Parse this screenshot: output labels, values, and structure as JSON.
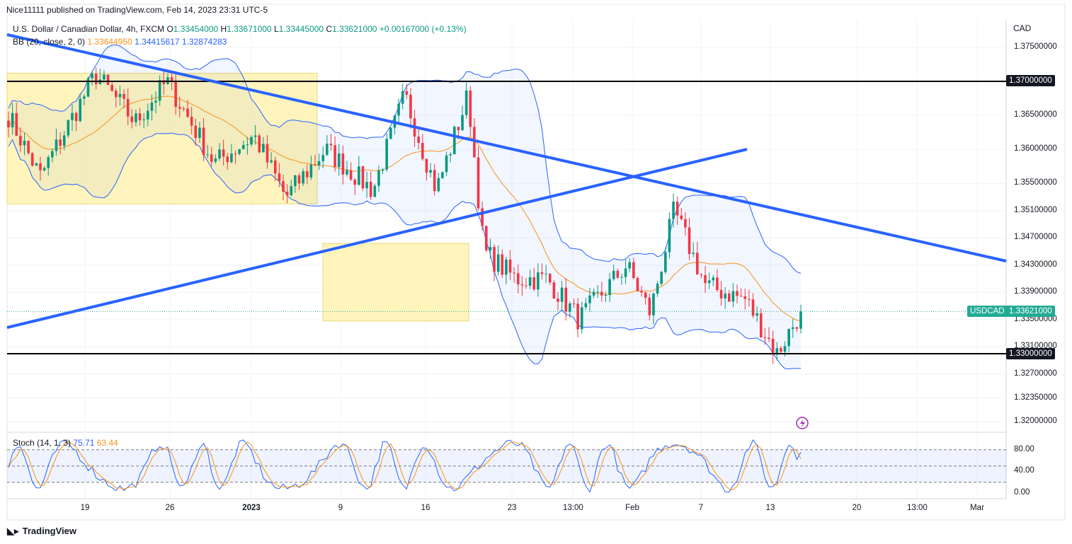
{
  "header": {
    "published": "Nice11111 published on TradingView.com, Feb 14, 2023 23:31 UTC-5",
    "symbol_line": "U.S. Dollar / Canadian Dollar, 4h, FXCM",
    "ohlc": {
      "o_label": "O",
      "o": "1.33454000",
      "h_label": "H",
      "h": "1.33671000",
      "l_label": "L",
      "l": "1.33445000",
      "c_label": "C",
      "c": "1.33621000",
      "change": "+0.00167000 (+0.13%)"
    },
    "bb_label": "BB (20, close, 2, 0)",
    "bb_values": [
      "1.33644950",
      "1.34415617",
      "1.32874283"
    ]
  },
  "stoch": {
    "label": "Stoch (14, 1, 3)",
    "k": "75.71",
    "d": "63.44",
    "axis_ticks": [
      "80.00",
      "40.00",
      "0.00"
    ]
  },
  "axis": {
    "currency": "CAD",
    "price_ticks": [
      "1.37500000",
      "1.36500000",
      "1.36000000",
      "1.35500000",
      "1.35100000",
      "1.34700000",
      "1.34300000",
      "1.33900000",
      "1.33500000",
      "1.33100000",
      "1.32700000",
      "1.32350000",
      "1.32000000"
    ],
    "x_ticks": [
      "19",
      "26",
      "2023",
      "9",
      "16",
      "23",
      "13:00",
      "Feb",
      "7",
      "13",
      "20",
      "13:00",
      "Mar"
    ]
  },
  "tags": {
    "level_high": "1.37000000",
    "level_low": "1.33000000",
    "symbol": "USDCAD",
    "last_price": "1.33621000"
  },
  "brand": {
    "logo_text": "TradingView"
  },
  "colors": {
    "up": "#089981",
    "down": "#f23645",
    "trendline": "#2962ff",
    "bb_basis": "#f7931a",
    "bb_band": "#2962ff",
    "zone": "#fff3b0",
    "stoch_k": "#2962ff",
    "stoch_d": "#f7931a"
  },
  "chart_data": [
    {
      "type": "candlestick",
      "title": "U.S. Dollar / Canadian Dollar, 4h, FXCM",
      "ylim": [
        1.318,
        1.379
      ],
      "x_tick_labels": [
        "19",
        "26",
        "2023",
        "9",
        "16",
        "23",
        "13:00",
        "Feb",
        "7",
        "13",
        "20",
        "13:00",
        "Mar"
      ],
      "horizontal_levels": [
        1.37,
        1.33
      ],
      "trendlines": [
        {
          "from": {
            "x": "Dec 12",
            "y": 1.3765
          },
          "to": {
            "x": "Mar 3",
            "y": 1.3435
          }
        },
        {
          "from": {
            "x": "Dec 12",
            "y": 1.3338
          },
          "to": {
            "x": "Feb 9",
            "y": 1.3601
          }
        }
      ],
      "zones": [
        {
          "from": "Dec 12",
          "to": "Jan 6",
          "ymin": 1.352,
          "ymax": 1.3712
        },
        {
          "from": "Jan 6",
          "to": "Jan 18",
          "ymin": 1.3348,
          "ymax": 1.3462
        }
      ],
      "bollinger_bands": {
        "period": 20,
        "mult": 2,
        "basis": 1.3364495,
        "upper": 1.34415617,
        "lower": 1.32874283
      },
      "last": {
        "open": 1.33454,
        "high": 1.33671,
        "low": 1.33445,
        "close": 1.33621
      }
    },
    {
      "type": "line",
      "title": "Stoch (14, 1, 3)",
      "ylim": [
        0,
        100
      ],
      "levels": [
        80,
        50,
        20
      ],
      "series": [
        {
          "name": "%K",
          "last": 75.71
        },
        {
          "name": "%D",
          "last": 63.44
        }
      ]
    }
  ]
}
